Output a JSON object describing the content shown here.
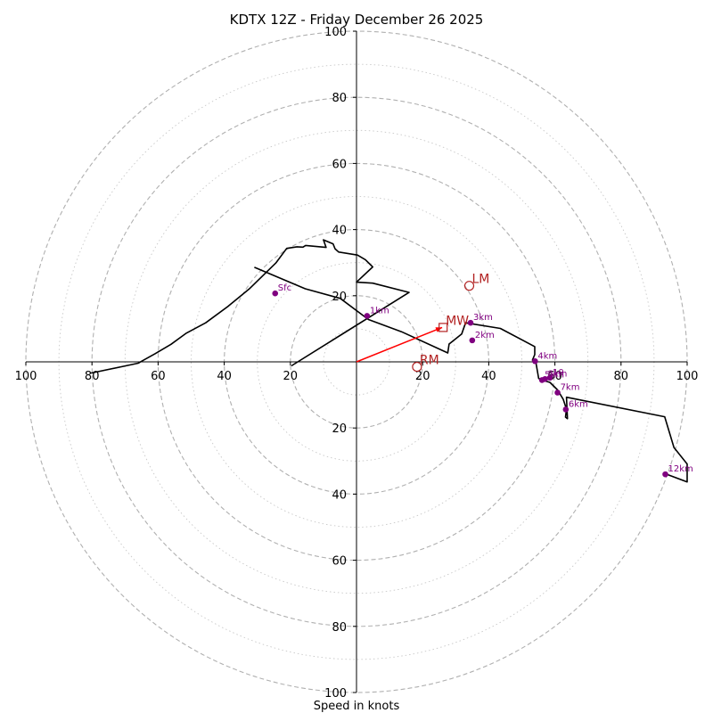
{
  "chart_data": {
    "type": "hodograph",
    "title": "KDTX 12Z - Friday December 26 2025",
    "xlabel": "Speed in knots",
    "axis_range": [
      -100,
      100
    ],
    "ring_ticks": [
      20,
      40,
      60,
      80,
      100
    ],
    "x_tick_labels": [
      "100",
      "80",
      "60",
      "40",
      "20",
      "20",
      "40",
      "60",
      "80",
      "100"
    ],
    "y_tick_labels": [
      "100",
      "80",
      "60",
      "40",
      "20",
      "20",
      "40",
      "60",
      "80",
      "100"
    ],
    "hodograph_trace": [
      [
        -30.9,
        28.6
      ],
      [
        -15.5,
        22.1
      ],
      [
        -4.9,
        19.2
      ],
      [
        3.6,
        12.8
      ],
      [
        13.6,
        9.1
      ],
      [
        27.6,
        2.7
      ],
      [
        28.0,
        5.4
      ],
      [
        31.8,
        8.4
      ],
      [
        33.0,
        11.8
      ],
      [
        43.5,
        10.1
      ],
      [
        53.9,
        4.6
      ],
      [
        53.9,
        2.2
      ],
      [
        53.2,
        0.5
      ],
      [
        54.3,
        -0.5
      ],
      [
        55.1,
        -5.0
      ],
      [
        56.4,
        -5.6
      ],
      [
        58.5,
        -6.2
      ],
      [
        60.8,
        -8.5
      ],
      [
        62.5,
        -11.3
      ],
      [
        63.5,
        -14.3
      ],
      [
        63.2,
        -16.7
      ],
      [
        63.8,
        -17.2
      ],
      [
        63.5,
        -10.7
      ],
      [
        93.2,
        -16.6
      ],
      [
        96.0,
        -25.9
      ],
      [
        100.0,
        -30.9
      ],
      [
        100.0,
        -36.3
      ],
      [
        93.8,
        -34.0
      ]
    ],
    "upper_loop": [
      [
        -19.7,
        -1.2
      ],
      [
        15.9,
        21.0
      ],
      [
        4.9,
        23.8
      ],
      [
        0.0,
        24.1
      ],
      [
        4.9,
        28.7
      ],
      [
        2.7,
        30.9
      ],
      [
        0.3,
        32.3
      ],
      [
        -5.4,
        33.2
      ],
      [
        -6.5,
        34.2
      ],
      [
        -7.1,
        35.7
      ],
      [
        -10.0,
        36.9
      ],
      [
        -9.2,
        34.6
      ],
      [
        -15.4,
        35.2
      ],
      [
        -16.2,
        34.7
      ],
      [
        -18.0,
        34.8
      ],
      [
        -21.1,
        34.3
      ],
      [
        -24.4,
        29.9
      ],
      [
        -32.5,
        22.0
      ],
      [
        -38.7,
        16.9
      ],
      [
        -45.6,
        11.8
      ],
      [
        -51.6,
        8.6
      ],
      [
        -56.1,
        5.3
      ],
      [
        -61.0,
        2.4
      ],
      [
        -64.4,
        0.5
      ],
      [
        -66.0,
        -0.4
      ],
      [
        -80.3,
        -3.4
      ]
    ],
    "height_markers": [
      {
        "label": "Sfc",
        "u": -24.6,
        "v": 20.7
      },
      {
        "label": "1km",
        "u": 3.2,
        "v": 13.9
      },
      {
        "label": "2km",
        "u": 35.0,
        "v": 6.5
      },
      {
        "label": "3km",
        "u": 34.5,
        "v": 11.8
      },
      {
        "label": "4km",
        "u": 54.0,
        "v": 0.2
      },
      {
        "label": "5km",
        "u": 56.1,
        "v": -5.5
      },
      {
        "label": "8km",
        "u": 57.0,
        "v": -5.2
      },
      {
        "label": "10",
        "u": 58.5,
        "v": -4.8
      },
      {
        "label": "7km",
        "u": 60.8,
        "v": -9.3
      },
      {
        "label": "6km",
        "u": 63.3,
        "v": -14.4
      },
      {
        "label": "12km",
        "u": 93.4,
        "v": -34.0
      }
    ],
    "storm_motion": [
      {
        "label": "LM",
        "u": 34.1,
        "v": 23.0,
        "marker": "circle"
      },
      {
        "label": "MW",
        "u": 26.2,
        "v": 10.4,
        "marker": "square"
      },
      {
        "label": "RM",
        "u": 18.3,
        "v": -1.5,
        "marker": "circle"
      }
    ],
    "mean_wind_vector": {
      "u": 25.9,
      "v": 10.4
    },
    "colors": {
      "trace": "#000000",
      "marker": "#800080",
      "motion": "#b22222",
      "vector": "#ff0000",
      "grid_major": "#b0b0b0",
      "grid_minor": "#c8c8c8"
    }
  }
}
